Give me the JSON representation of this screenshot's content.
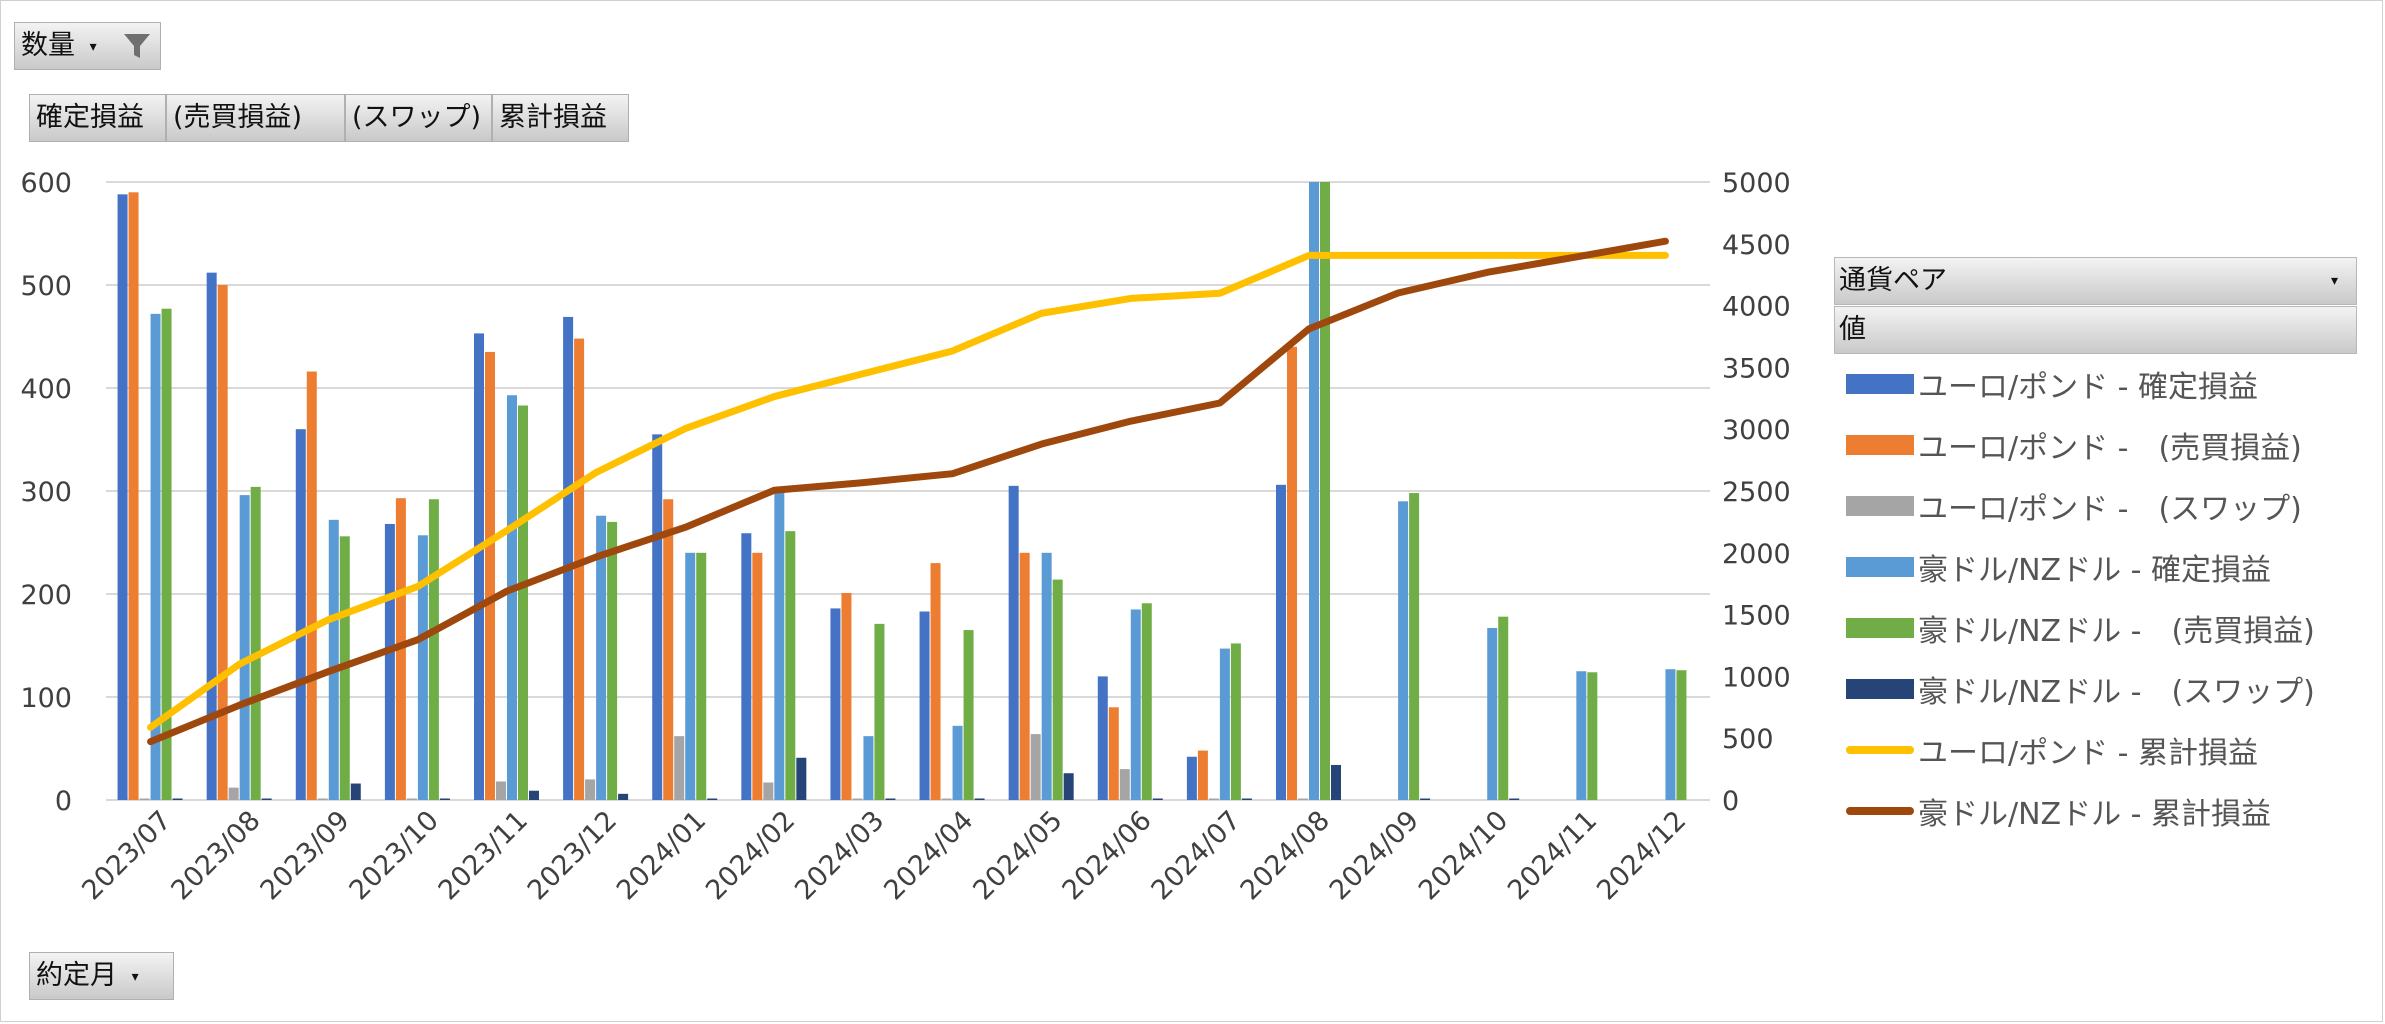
{
  "filters": {
    "top_filter_label": "数量",
    "value_tabs": [
      "確定損益",
      "(売買損益)",
      "(スワップ)",
      "累計損益"
    ],
    "axis_field_label": "約定月"
  },
  "legend": {
    "header": "通貨ペア",
    "subheader": "値"
  },
  "chart_data": {
    "type": "bar",
    "categories": [
      "2023/07",
      "2023/08",
      "2023/09",
      "2023/10",
      "2023/11",
      "2023/12",
      "2024/01",
      "2024/02",
      "2024/03",
      "2024/04",
      "2024/05",
      "2024/06",
      "2024/07",
      "2024/08",
      "2024/09",
      "2024/10",
      "2024/11",
      "2024/12"
    ],
    "ylim": [
      0,
      600
    ],
    "yticks": [
      0,
      100,
      200,
      300,
      400,
      500,
      600
    ],
    "y2lim": [
      0,
      5000
    ],
    "y2ticks": [
      0,
      500,
      1000,
      1500,
      2000,
      2500,
      3000,
      3500,
      4000,
      4500,
      5000
    ],
    "grid": true,
    "legend_position": "right",
    "bar_series": [
      {
        "name": "ユーロ/ポンド - 確定損益",
        "color": "#4472c4",
        "values": [
          588,
          512,
          360,
          268,
          453,
          469,
          355,
          259,
          186,
          183,
          305,
          120,
          42,
          306,
          null,
          null,
          null,
          null
        ]
      },
      {
        "name": "ユーロ/ポンド -　(売買損益)",
        "color": "#ed7d31",
        "values": [
          590,
          500,
          416,
          293,
          435,
          448,
          292,
          240,
          201,
          230,
          240,
          90,
          48,
          440,
          null,
          null,
          null,
          null
        ]
      },
      {
        "name": "ユーロ/ポンド -　(スワップ)",
        "color": "#a5a5a5",
        "values": [
          0,
          12,
          0,
          0,
          18,
          20,
          62,
          17,
          0,
          0,
          64,
          30,
          0,
          0,
          null,
          null,
          null,
          null
        ]
      },
      {
        "name": "豪ドル/NZドル - 確定損益",
        "color": "#5b9bd5",
        "values": [
          472,
          296,
          272,
          257,
          393,
          276,
          240,
          300,
          62,
          72,
          240,
          185,
          147,
          600,
          290,
          167,
          125,
          127
        ]
      },
      {
        "name": "豪ドル/NZドル -　(売買損益)",
        "color": "#70ad47",
        "values": [
          477,
          304,
          256,
          292,
          383,
          270,
          240,
          261,
          171,
          165,
          214,
          191,
          152,
          600,
          298,
          178,
          124,
          126
        ]
      },
      {
        "name": "豪ドル/NZドル -　(スワップ)",
        "color": "#264478",
        "values": [
          0,
          0,
          16,
          0,
          9,
          6,
          0,
          41,
          0,
          0,
          26,
          0,
          0,
          34,
          0,
          0,
          null,
          null
        ]
      }
    ],
    "line_series": [
      {
        "name": "ユーロ/ポンド - 累計損益",
        "color": "#ffc000",
        "values": [
          588,
          1100,
          1460,
          1728,
          2181,
          2650,
          3005,
          3264,
          3450,
          3633,
          3938,
          4058,
          4100,
          4406,
          4406,
          4406,
          4406,
          4406
        ]
      },
      {
        "name": "豪ドル/NZドル - 累計損益",
        "color": "#9e480e",
        "values": [
          472,
          768,
          1040,
          1297,
          1690,
          1966,
          2206,
          2506,
          2568,
          2640,
          2880,
          3065,
          3212,
          3812,
          4102,
          4269,
          4394,
          4521
        ]
      }
    ]
  }
}
